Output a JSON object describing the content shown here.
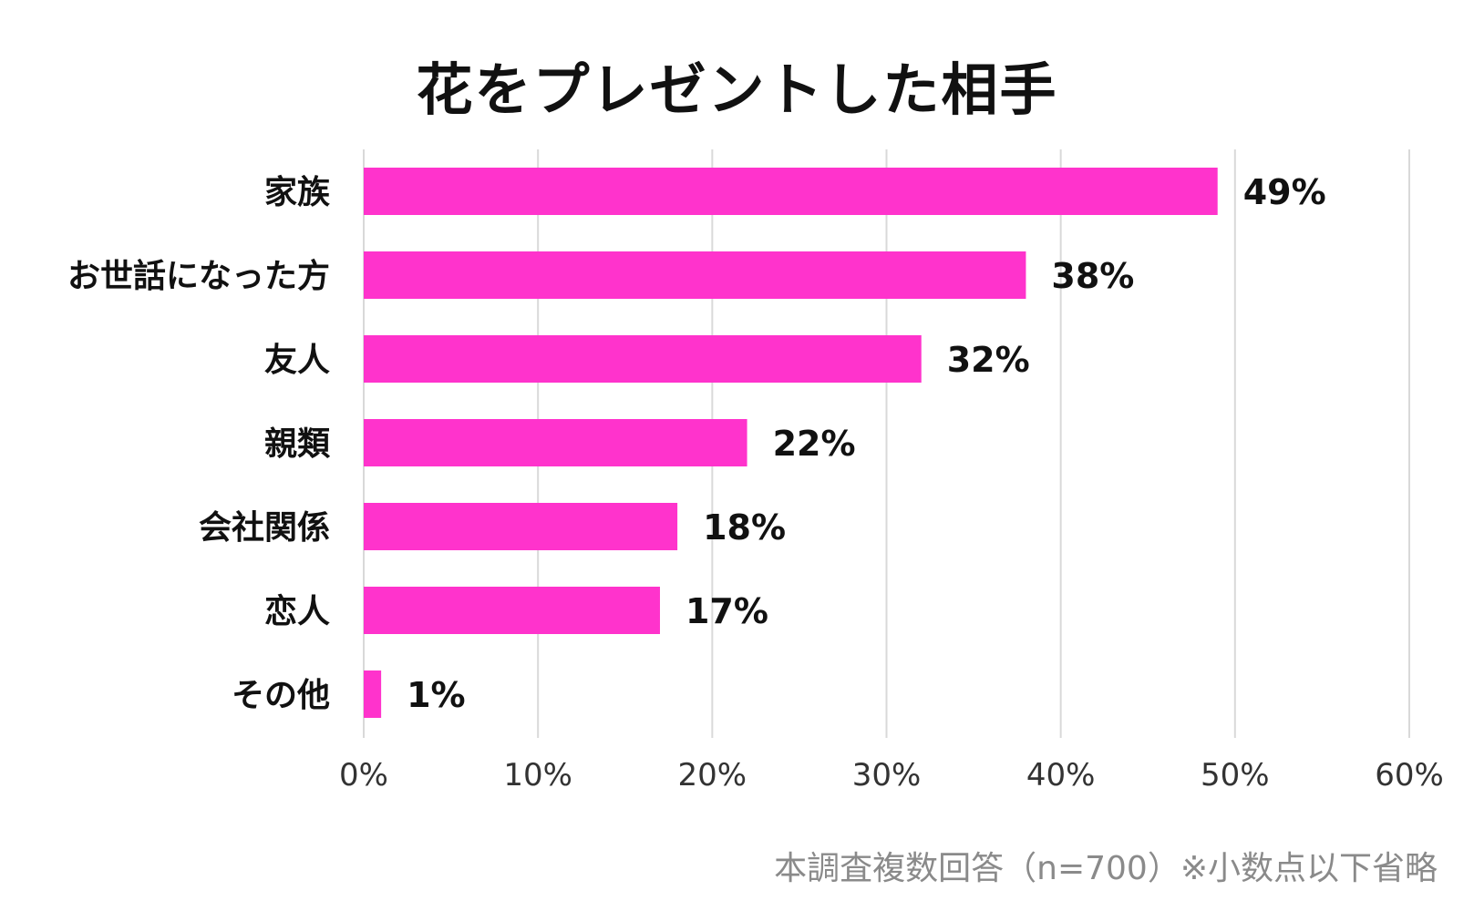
{
  "chart_data": {
    "type": "bar",
    "orientation": "horizontal",
    "title": "花をプレゼントした相手",
    "categories": [
      "家族",
      "お世話になった方",
      "友人",
      "親類",
      "会社関係",
      "恋人",
      "その他"
    ],
    "values": [
      49,
      38,
      32,
      22,
      18,
      17,
      1
    ],
    "data_labels": [
      "49%",
      "38%",
      "32%",
      "22%",
      "18%",
      "17%",
      "1%"
    ],
    "xlim": [
      0,
      60
    ],
    "xticks": [
      0,
      10,
      20,
      30,
      40,
      50,
      60
    ],
    "xtick_labels": [
      "0%",
      "10%",
      "20%",
      "30%",
      "40%",
      "50%",
      "60%"
    ],
    "xlabel": "",
    "ylabel": "",
    "grid": true,
    "bar_color": "#ff33cc",
    "gridline_color": "#d9d9d9"
  },
  "footnote": "本調査複数回答（n=700）※小数点以下省略"
}
